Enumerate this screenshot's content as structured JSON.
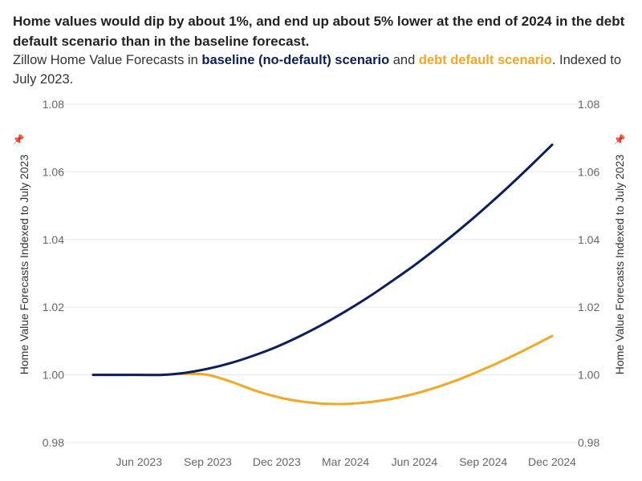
{
  "headline": "Home values would dip by about 1%, and end up about 5% lower at the end of 2024 in the debt default scenario than in the baseline forecast.",
  "subtitle": {
    "prefix": "Zillow Home Value Forecasts in ",
    "baseline_label": "baseline (no-default) scenario",
    "middle": " and ",
    "default_label": "debt default scenario",
    "suffix": ". Indexed to July 2023."
  },
  "colors": {
    "baseline": "#0b1f5c",
    "default": "#f5a623",
    "grid": "#e8e8e8"
  },
  "chart_data": {
    "type": "line",
    "title": "",
    "xlabel": "",
    "ylabel": "Home Value Forecasts Indexed to July 2023",
    "ylabel_right": "Home Value Forecasts Indexed to July 2023",
    "ylim": [
      0.98,
      1.08
    ],
    "ytick_labels": [
      "0.98",
      "1.00",
      "1.02",
      "1.04",
      "1.06",
      "1.08"
    ],
    "x_tick_labels": [
      "Jun 2023",
      "Sep 2023",
      "Dec 2023",
      "Mar 2024",
      "Jun 2024",
      "Sep 2024",
      "Dec 2024"
    ],
    "grid": true,
    "x": [
      "2023-04",
      "2023-05",
      "2023-06",
      "2023-07",
      "2023-08",
      "2023-09",
      "2023-10",
      "2023-11",
      "2023-12",
      "2024-01",
      "2024-02",
      "2024-03",
      "2024-04",
      "2024-05",
      "2024-06",
      "2024-07",
      "2024-08",
      "2024-09",
      "2024-10",
      "2024-11",
      "2024-12"
    ],
    "series": [
      {
        "name": "baseline (no-default) scenario",
        "values": [
          1.0,
          1.0,
          1.0,
          1.0,
          1.0006,
          1.0018,
          1.0035,
          1.0057,
          1.0083,
          1.0114,
          1.0149,
          1.0188,
          1.023,
          1.0276,
          1.0324,
          1.0376,
          1.0431,
          1.0489,
          1.055,
          1.0614,
          1.068
        ]
      },
      {
        "name": "debt default scenario",
        "values": [
          1.0,
          1.0,
          1.0,
          1.0,
          1.0003,
          1.0,
          0.998,
          0.9955,
          0.9935,
          0.9922,
          0.9915,
          0.9914,
          0.9919,
          0.9929,
          0.9944,
          0.9964,
          0.9988,
          1.0016,
          1.0047,
          1.008,
          1.0115
        ]
      }
    ]
  }
}
